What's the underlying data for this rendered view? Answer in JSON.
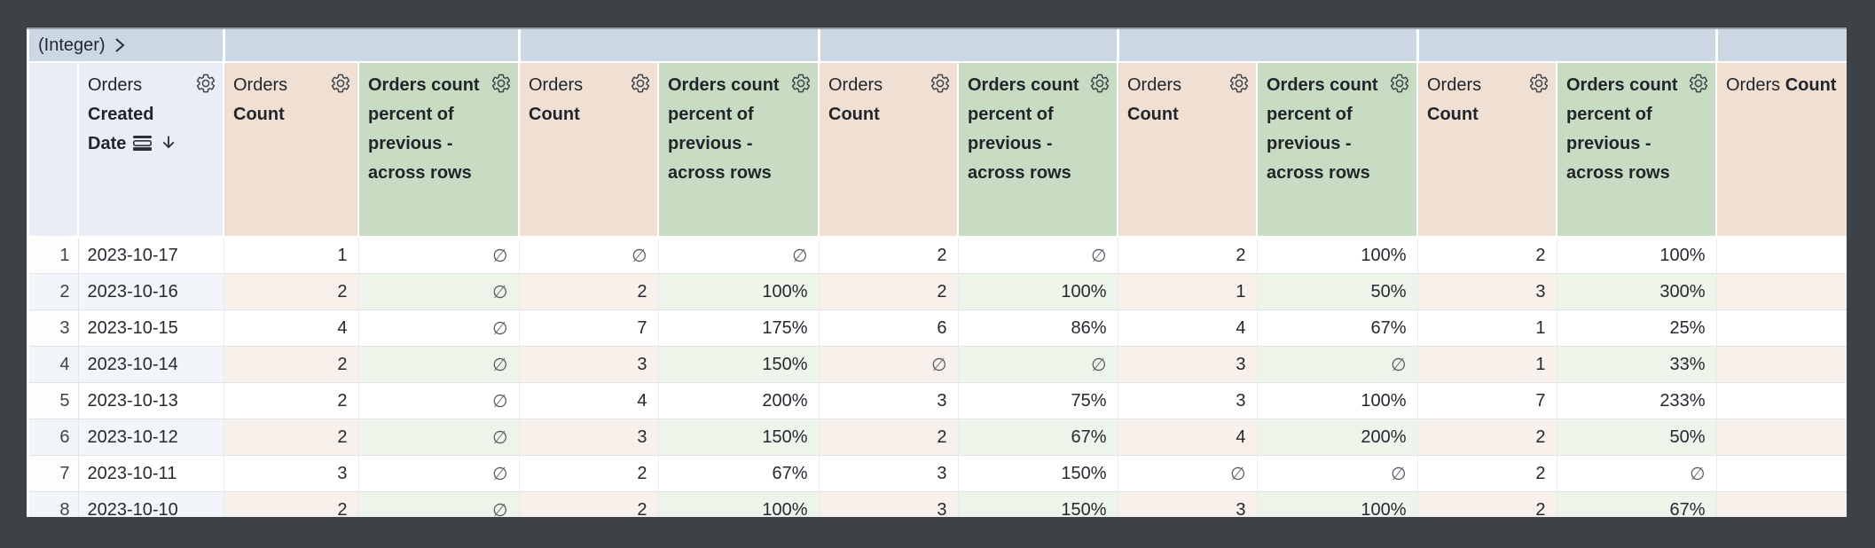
{
  "pivot_band": {
    "label": "(Integer)"
  },
  "headers": {
    "dimension": {
      "view": "Orders",
      "field": "Created Date"
    },
    "measure": {
      "view": "Orders",
      "field": "Count"
    },
    "table_calc": {
      "label": "Orders count percent of previous - across rows"
    }
  },
  "table": {
    "value_columns": [
      "count",
      "percent",
      "count",
      "percent",
      "count",
      "percent",
      "count",
      "percent",
      "count",
      "percent",
      "count"
    ],
    "rows": [
      {
        "index": "1",
        "date": "2023-10-17",
        "values": [
          "1",
          "∅",
          "∅",
          "∅",
          "2",
          "∅",
          "2",
          "100%",
          "2",
          "100%",
          "∅"
        ]
      },
      {
        "index": "2",
        "date": "2023-10-16",
        "values": [
          "2",
          "∅",
          "2",
          "100%",
          "2",
          "100%",
          "1",
          "50%",
          "3",
          "300%",
          "∅"
        ]
      },
      {
        "index": "3",
        "date": "2023-10-15",
        "values": [
          "4",
          "∅",
          "7",
          "175%",
          "6",
          "86%",
          "4",
          "67%",
          "1",
          "25%",
          "∅"
        ]
      },
      {
        "index": "4",
        "date": "2023-10-14",
        "values": [
          "2",
          "∅",
          "3",
          "150%",
          "∅",
          "∅",
          "3",
          "∅",
          "1",
          "33%",
          "∅"
        ]
      },
      {
        "index": "5",
        "date": "2023-10-13",
        "values": [
          "2",
          "∅",
          "4",
          "200%",
          "3",
          "75%",
          "3",
          "100%",
          "7",
          "233%",
          "∅"
        ]
      },
      {
        "index": "6",
        "date": "2023-10-12",
        "values": [
          "2",
          "∅",
          "3",
          "150%",
          "2",
          "67%",
          "4",
          "200%",
          "2",
          "50%",
          "∅"
        ]
      },
      {
        "index": "7",
        "date": "2023-10-11",
        "values": [
          "3",
          "∅",
          "2",
          "67%",
          "3",
          "150%",
          "∅",
          "∅",
          "2",
          "∅",
          "∅"
        ]
      },
      {
        "index": "8",
        "date": "2023-10-10",
        "values": [
          "2",
          "∅",
          "2",
          "100%",
          "3",
          "150%",
          "3",
          "100%",
          "2",
          "67%",
          "∅"
        ]
      }
    ],
    "null_symbol": "∅"
  },
  "colors": {
    "frame": "#3d4246",
    "pivot_band_bg": "#ccd7e4",
    "dimension_header_bg": "#e9eef6",
    "measure_header_bg": "#f0e0d3",
    "calc_header_bg": "#c7dcc2",
    "tint_dimension": "#f2f5f9",
    "tint_measure": "#f8f0ea",
    "tint_calc": "#edf4ea"
  }
}
